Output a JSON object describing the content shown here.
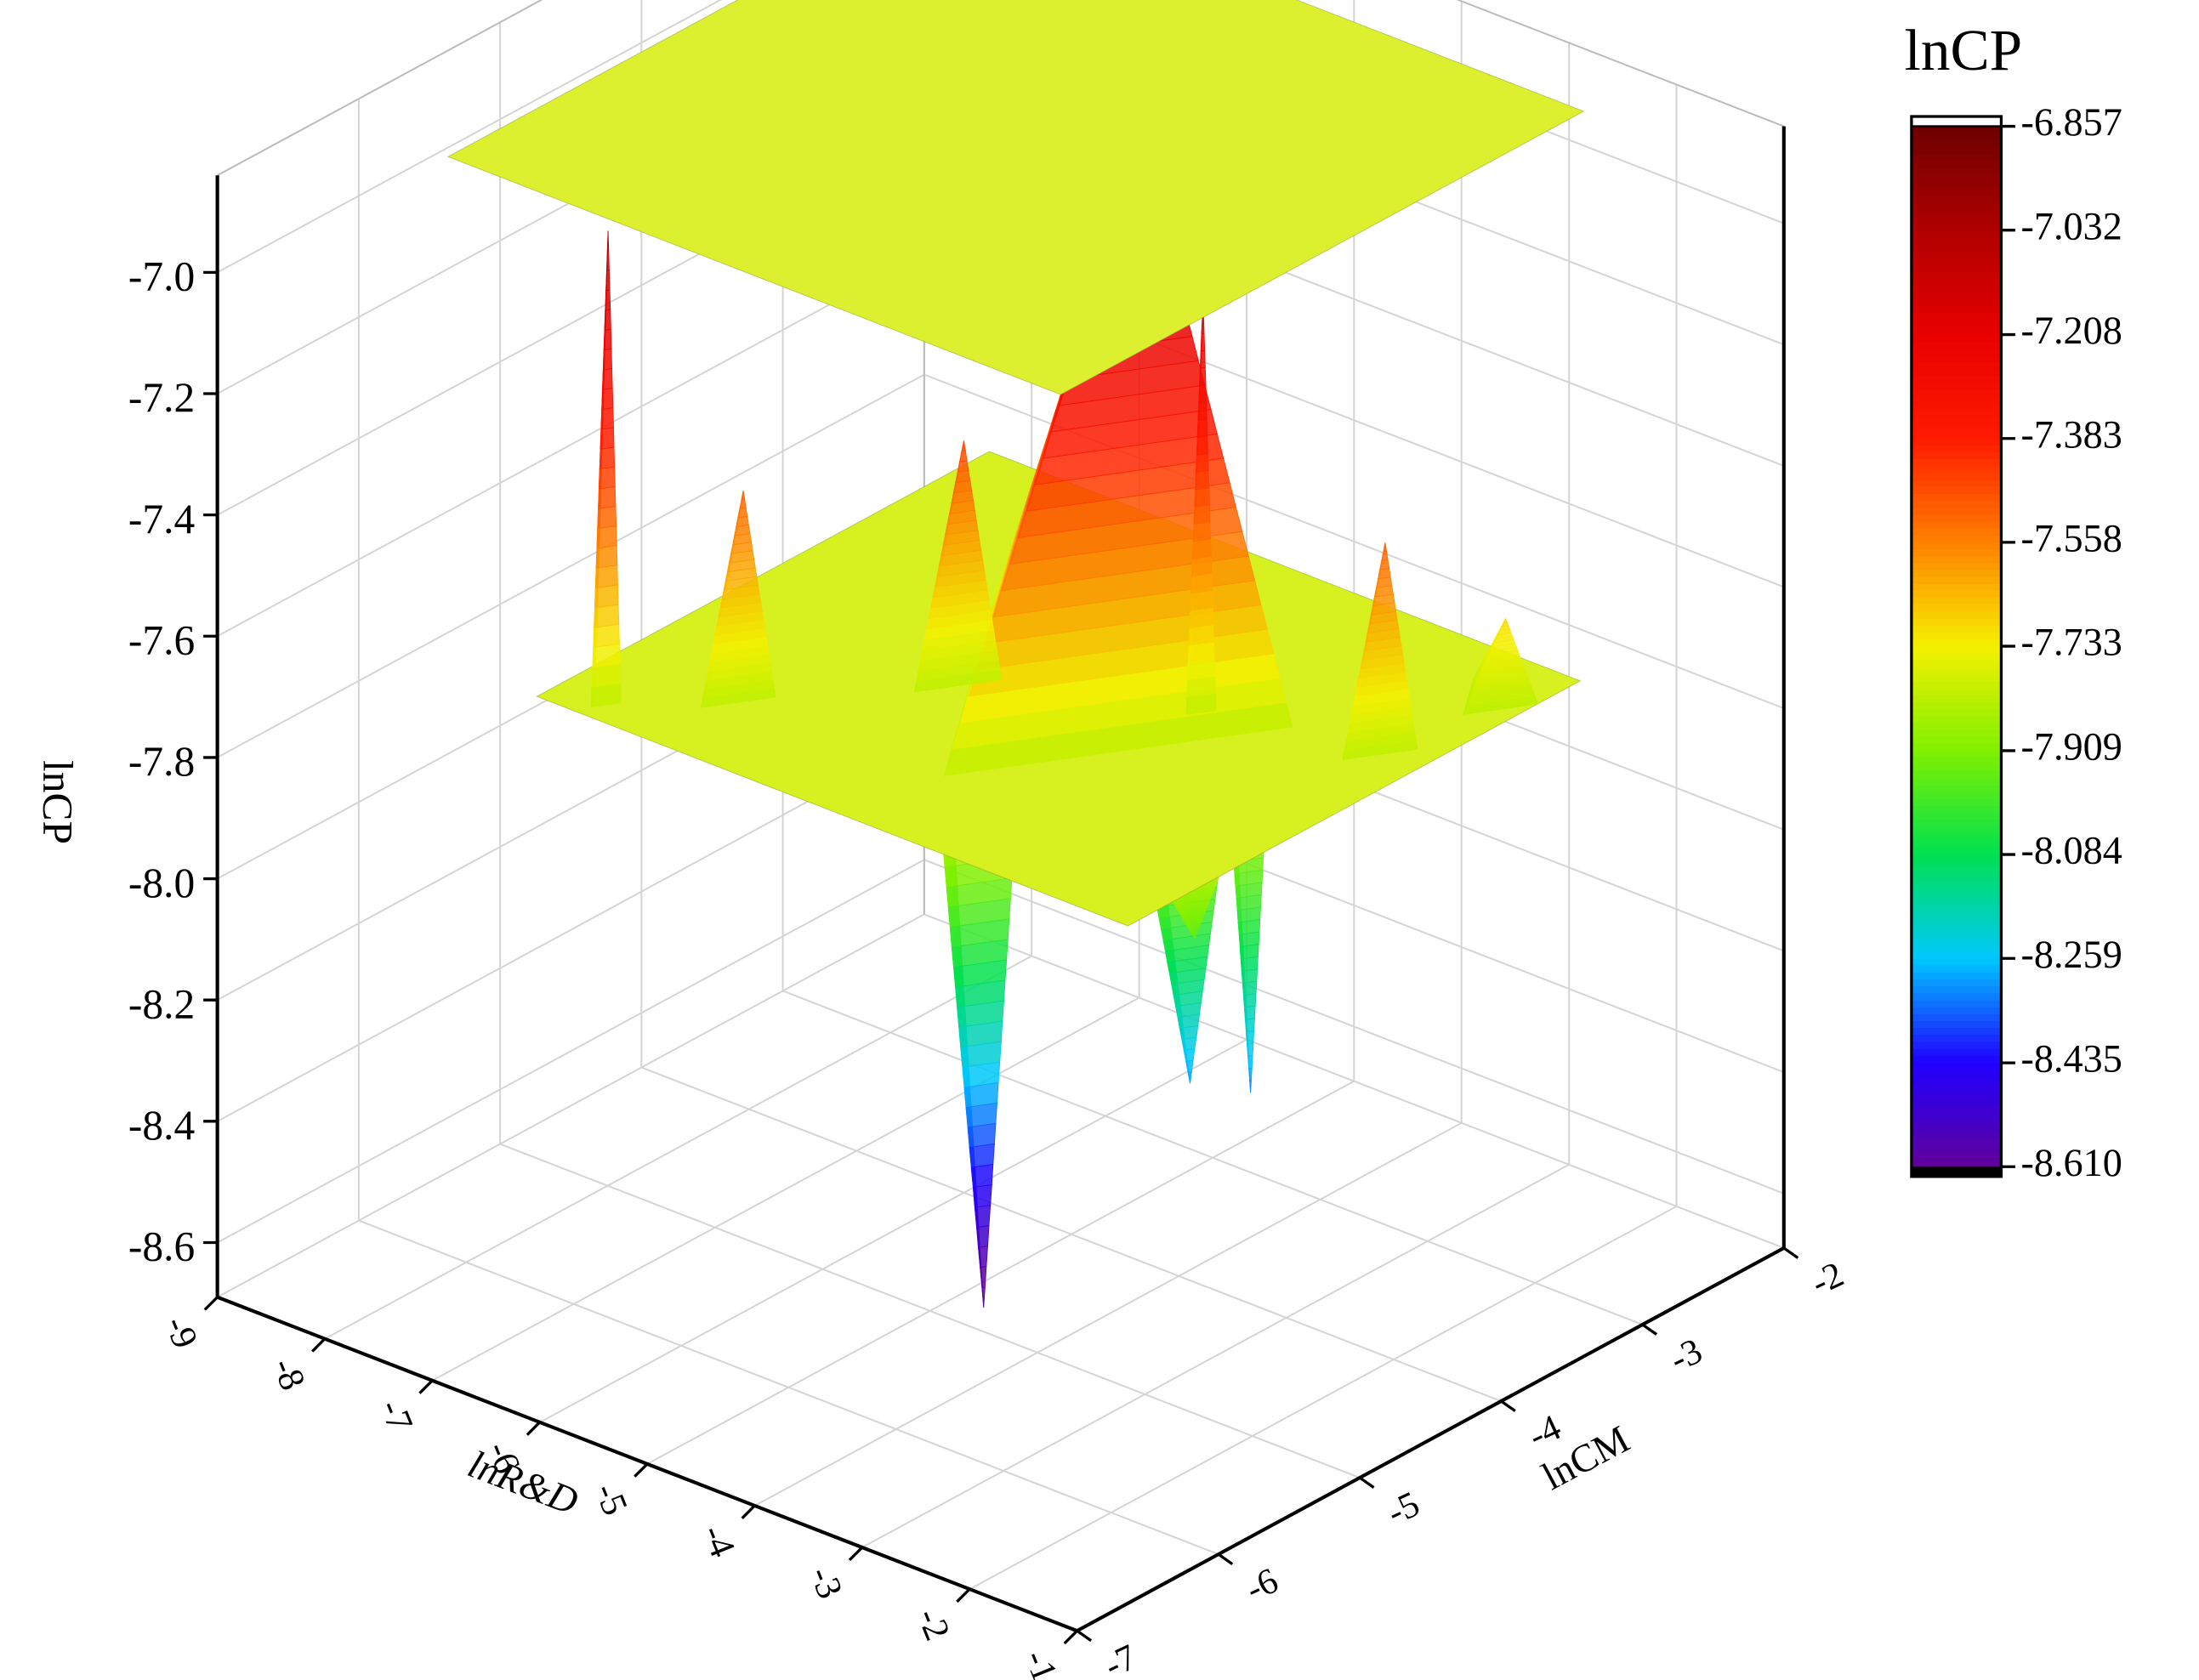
{
  "chart_data": {
    "type": "surface3d",
    "xlabel": "lnR&D",
    "ylabel": "lnCM",
    "zlabel": "lnCP",
    "colorbar_title": "lnCP",
    "xlim": [
      -9,
      -1
    ],
    "ylim": [
      -7,
      -2
    ],
    "zlim": [
      -8.69,
      -6.84
    ],
    "xticks": [
      -9,
      -8,
      -7,
      -6,
      -5,
      -4,
      -3,
      -2,
      -1
    ],
    "yticks": [
      -7,
      -6,
      -5,
      -4,
      -3,
      -2
    ],
    "zticks": [
      {
        "value": -7,
        "label": "-7.0"
      },
      -7.2,
      -7.4,
      -7.6,
      -7.8,
      {
        "value": -8,
        "label": "-8.0"
      },
      -8.2,
      -8.4,
      -8.6
    ],
    "grid": true,
    "colorbar_ticks": [
      -6.857,
      -7.032,
      -7.208,
      -7.383,
      -7.558,
      -7.733,
      -7.909,
      -8.084,
      -8.259,
      -8.435,
      {
        "value": -8.61,
        "label": "-8.610"
      }
    ],
    "colorbar_colors": [
      "#6e0000",
      "#b00000",
      "#e80000",
      "#ff1a00",
      "#ff8000",
      "#f5f000",
      "#80f000",
      "#00e050",
      "#00c8ff",
      "#2000ff",
      "#60009a"
    ],
    "surface": {
      "layers": [
        {
          "z": -7.82,
          "x": [
            -8,
            -2.5
          ],
          "y": [
            -5.5,
            -2.3
          ],
          "color": "#d6f020"
        },
        {
          "z": -6.9,
          "x": [
            -8.3,
            -2.6
          ],
          "y": [
            -5.9,
            -2.2
          ],
          "color": "#dcf030"
        }
      ],
      "spikes": [
        {
          "x": -4.5,
          "y": -5,
          "z": -8.65,
          "w": 0.3
        },
        {
          "x": -3.5,
          "y": -4.3,
          "z": -8.3,
          "w": 0.35
        },
        {
          "x": -3.2,
          "y": -4.1,
          "z": -8.32,
          "w": 0.15
        },
        {
          "x": -2.8,
          "y": -4.8,
          "z": -7.95,
          "w": 0.25
        },
        {
          "x": -5,
          "y": -3.5,
          "z": -6.95,
          "w": 1.4
        },
        {
          "x": -7.6,
          "y": -5.3,
          "z": -7.05,
          "w": 0.12
        },
        {
          "x": -7,
          "y": -4.8,
          "z": -7.5,
          "w": 0.3
        },
        {
          "x": -6,
          "y": -4,
          "z": -7.45,
          "w": 0.35
        },
        {
          "x": -4.3,
          "y": -3.6,
          "z": -7.15,
          "w": 0.12
        },
        {
          "x": -3,
          "y": -3.3,
          "z": -7.5,
          "w": 0.3
        },
        {
          "x": -2.8,
          "y": -2.6,
          "z": -7.7,
          "w": 0.3
        }
      ]
    }
  }
}
